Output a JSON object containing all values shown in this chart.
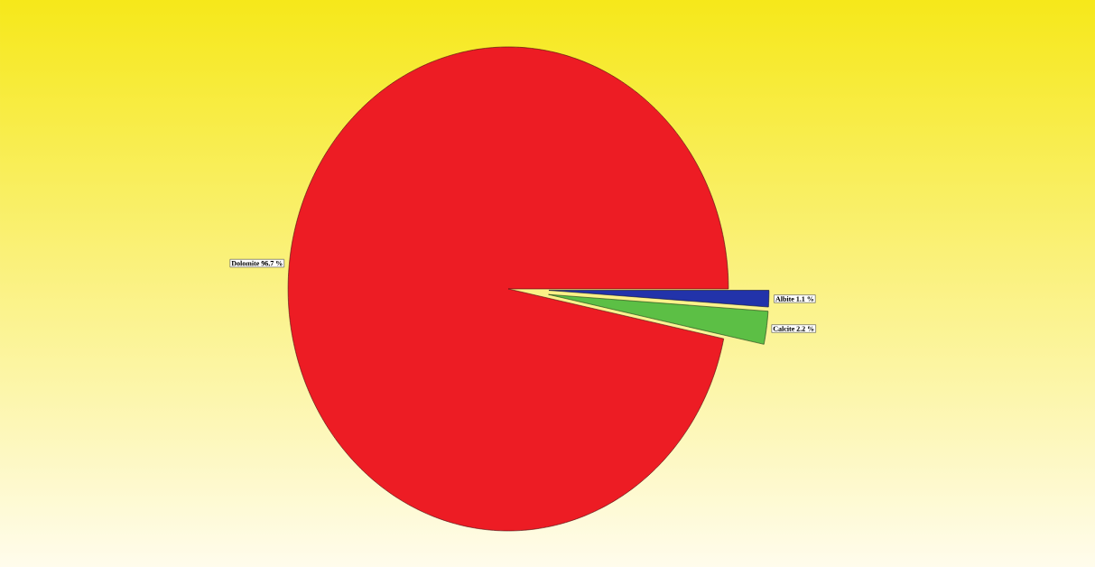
{
  "chart_data": {
    "type": "pie",
    "categories": [
      "Dolomite",
      "Calcite",
      "Albite"
    ],
    "values": [
      96.7,
      2.2,
      1.1
    ],
    "value_labels": [
      "96.7 %",
      "2.2 %",
      "1.1 %"
    ],
    "colors": [
      "#ed1c24",
      "#5cbf45",
      "#2233aa"
    ]
  }
}
